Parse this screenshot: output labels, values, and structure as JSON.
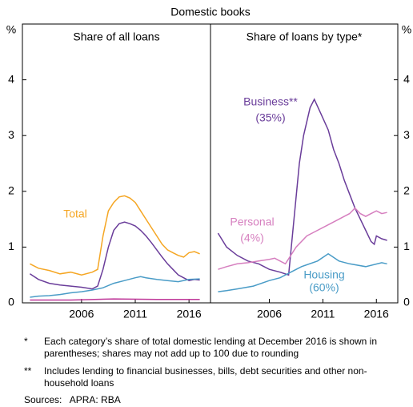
{
  "subtitle": "Domestic books",
  "chart_data": [
    {
      "type": "line",
      "title": "Share of all loans",
      "y_unit": "%",
      "xlim": [
        2000.5,
        2018
      ],
      "xticks": [
        2006,
        2011,
        2016
      ],
      "ylim": [
        0,
        5
      ],
      "yticks": [
        0,
        1,
        2,
        3,
        4
      ],
      "series": [
        {
          "name": "Total",
          "color": "#f5a623",
          "x": [
            2001.2,
            2002,
            2003,
            2004,
            2005,
            2006,
            2007,
            2007.5,
            2008,
            2008.5,
            2009,
            2009.5,
            2010,
            2010.5,
            2011,
            2011.5,
            2012,
            2012.5,
            2013,
            2013.5,
            2014,
            2014.5,
            2015,
            2015.5,
            2016,
            2016.5,
            2017
          ],
          "values": [
            0.7,
            0.62,
            0.58,
            0.52,
            0.55,
            0.5,
            0.55,
            0.6,
            1.2,
            1.65,
            1.8,
            1.9,
            1.92,
            1.88,
            1.8,
            1.65,
            1.5,
            1.35,
            1.2,
            1.05,
            0.95,
            0.9,
            0.85,
            0.82,
            0.9,
            0.92,
            0.88
          ]
        },
        {
          "color": "#6a3d9a",
          "x": [
            2001.2,
            2002,
            2003,
            2004,
            2005,
            2006,
            2007,
            2007.5,
            2008,
            2008.5,
            2009,
            2009.5,
            2010,
            2010.5,
            2011,
            2011.5,
            2012,
            2012.5,
            2013,
            2013.5,
            2014,
            2014.5,
            2015,
            2015.5,
            2016,
            2016.5,
            2017
          ],
          "values": [
            0.52,
            0.42,
            0.35,
            0.32,
            0.3,
            0.28,
            0.25,
            0.3,
            0.6,
            1.0,
            1.3,
            1.42,
            1.45,
            1.42,
            1.38,
            1.3,
            1.2,
            1.08,
            0.95,
            0.82,
            0.7,
            0.6,
            0.5,
            0.45,
            0.4,
            0.42,
            0.41
          ]
        },
        {
          "color": "#4a9cc7",
          "x": [
            2001.2,
            2002,
            2003,
            2004,
            2005,
            2006,
            2007,
            2008,
            2009,
            2010,
            2011,
            2011.5,
            2012,
            2013,
            2014,
            2015,
            2016,
            2017
          ],
          "values": [
            0.1,
            0.12,
            0.13,
            0.15,
            0.18,
            0.2,
            0.23,
            0.27,
            0.35,
            0.4,
            0.45,
            0.47,
            0.45,
            0.42,
            0.4,
            0.38,
            0.42,
            0.43
          ]
        },
        {
          "color": "#c0399a",
          "x": [
            2001.2,
            2005,
            2009,
            2013,
            2017
          ],
          "values": [
            0.05,
            0.05,
            0.07,
            0.06,
            0.06
          ]
        }
      ]
    },
    {
      "type": "line",
      "title": "Share of loans by type*",
      "y_unit": "%",
      "xlim": [
        2000.5,
        2018
      ],
      "xticks": [
        2006,
        2011,
        2016
      ],
      "ylim": [
        0,
        5
      ],
      "yticks": [
        0,
        1,
        2,
        3,
        4
      ],
      "series": [
        {
          "name": "Business**",
          "share": "(35%)",
          "color": "#6a3d9a",
          "x": [
            2001.2,
            2002,
            2003,
            2004,
            2005,
            2006,
            2007,
            2007.8,
            2008.3,
            2008.8,
            2009.2,
            2009.8,
            2010.2,
            2010.8,
            2011.5,
            2012,
            2012.5,
            2013,
            2013.5,
            2014,
            2014.5,
            2015,
            2015.5,
            2015.8,
            2016,
            2016.5,
            2017
          ],
          "values": [
            1.25,
            1.0,
            0.85,
            0.75,
            0.7,
            0.6,
            0.55,
            0.5,
            1.5,
            2.5,
            3.0,
            3.5,
            3.65,
            3.4,
            3.1,
            2.75,
            2.5,
            2.2,
            1.95,
            1.7,
            1.5,
            1.3,
            1.1,
            1.05,
            1.2,
            1.15,
            1.12
          ]
        },
        {
          "name": "Personal",
          "share": "(4%)",
          "color": "#d67fbf",
          "x": [
            2001.2,
            2002,
            2003,
            2004,
            2005,
            2006,
            2006.5,
            2007.5,
            2008.5,
            2009.5,
            2010.5,
            2011.5,
            2012.5,
            2013,
            2013.5,
            2014,
            2014.5,
            2015,
            2015.5,
            2016,
            2016.5,
            2017
          ],
          "values": [
            0.6,
            0.65,
            0.7,
            0.72,
            0.75,
            0.78,
            0.8,
            0.7,
            1.0,
            1.2,
            1.3,
            1.4,
            1.5,
            1.55,
            1.6,
            1.7,
            1.6,
            1.55,
            1.6,
            1.65,
            1.6,
            1.62
          ]
        },
        {
          "name": "Housing",
          "share": "(60%)",
          "color": "#4a9cc7",
          "x": [
            2001.2,
            2002,
            2003,
            2004.5,
            2006,
            2007,
            2008,
            2009,
            2010.5,
            2011.5,
            2012.5,
            2013.5,
            2015,
            2016.5,
            2017
          ],
          "values": [
            0.2,
            0.22,
            0.25,
            0.3,
            0.4,
            0.45,
            0.55,
            0.65,
            0.75,
            0.88,
            0.75,
            0.7,
            0.65,
            0.72,
            0.7
          ]
        }
      ]
    }
  ],
  "footnotes": [
    {
      "marker": "*",
      "text": "Each category’s share of total domestic lending at December 2016 is shown in parentheses; shares may not add up to 100 due to rounding"
    },
    {
      "marker": "**",
      "text": "Includes lending to financial businesses, bills, debt securities and other non-household loans"
    }
  ],
  "sources": "Sources:   APRA: RBA"
}
